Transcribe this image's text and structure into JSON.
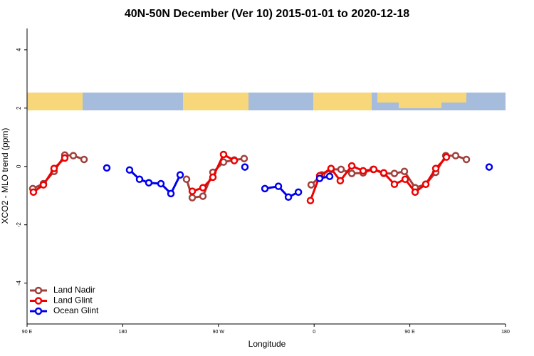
{
  "chart_data": {
    "type": "line",
    "title": "40N-50N December (Ver 10)   2015-01-01 to 2020-12-18",
    "xlabel": "Longitude",
    "ylabel": "XCO2 - MLO trend (ppm)",
    "xlim": [
      90,
      540
    ],
    "ylim": [
      -5.4,
      4.73
    ],
    "xticks": [
      {
        "value": 90,
        "label": "90 E"
      },
      180,
      {
        "value": 270,
        "label": "90 W"
      },
      {
        "value": 360,
        "label": "0"
      },
      {
        "value": 450,
        "label": "90 E"
      },
      {
        "value": 540,
        "label": "180"
      }
    ],
    "yticks": [
      -4,
      -2,
      0,
      2,
      4
    ],
    "legend": "bottom-left",
    "series": [
      {
        "name": "Land Nadir",
        "color": "#a0403c",
        "x": [
          95.4,
          105.4,
          115.4,
          125.5,
          133.5,
          143.6,
          null,
          240,
          245.4,
          255.4,
          264.8,
          274.8,
          284.9,
          294.2,
          null,
          357.2,
          367.2,
          375.9,
          385.3,
          395.4,
          406.1,
          415.5,
          425.5,
          435.5,
          444.9,
          455,
          465,
          474.4,
          483.8,
          493.1,
          503.2
        ],
        "values": [
          -0.76,
          -0.59,
          -0.17,
          0.39,
          0.37,
          0.24,
          null,
          -0.44,
          -1.07,
          -1.02,
          -0.2,
          0.15,
          0.22,
          0.27,
          null,
          -0.63,
          -0.29,
          -0.1,
          -0.1,
          -0.24,
          -0.22,
          -0.1,
          -0.24,
          -0.24,
          -0.17,
          -0.73,
          -0.61,
          -0.2,
          0.37,
          0.37,
          0.24
        ]
      },
      {
        "name": "Land Glint",
        "color": "#ee0000",
        "x": [
          96,
          105.4,
          115.4,
          125.5,
          null,
          245.4,
          255.4,
          264.8,
          274.8,
          284.9,
          null,
          356.5,
          365.2,
          375.9,
          384.6,
          395.4,
          406.1,
          416.1,
          425.5,
          435.5,
          445.6,
          455,
          465,
          474.4,
          484.4
        ],
        "values": [
          -0.88,
          -0.63,
          -0.07,
          0.29,
          null,
          -0.85,
          -0.73,
          -0.37,
          0.41,
          0.2,
          null,
          -1.17,
          -0.32,
          -0.07,
          -0.49,
          0.02,
          -0.15,
          -0.1,
          -0.22,
          -0.61,
          -0.44,
          -0.88,
          -0.61,
          -0.07,
          0.32
        ]
      },
      {
        "name": "Ocean Glint",
        "color": "#0000ee",
        "x": [
          165,
          null,
          186.4,
          195.8,
          204.5,
          215.9,
          225.3,
          234,
          null,
          294.9,
          null,
          313.7,
          326.4,
          335.8,
          345.2,
          null,
          365.2,
          374.6,
          null,
          524.6
        ],
        "values": [
          -0.05,
          null,
          -0.12,
          -0.44,
          -0.56,
          -0.59,
          -0.93,
          -0.29,
          null,
          -0.02,
          null,
          -0.76,
          -0.68,
          -1.05,
          -0.88,
          null,
          -0.41,
          -0.34,
          null,
          -0.02
        ]
      }
    ]
  }
}
